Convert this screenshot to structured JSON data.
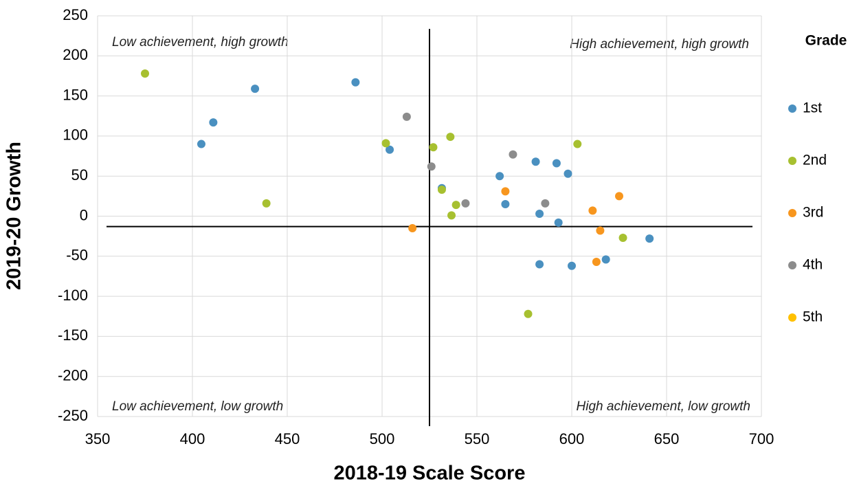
{
  "chart_data": {
    "type": "scatter",
    "xlabel": "2018-19 Scale Score",
    "ylabel": "2019-20 Growth",
    "legend_title": "Grade",
    "legend_position": "right",
    "grid": true,
    "xlim": [
      350,
      700
    ],
    "xticks": [
      350,
      400,
      450,
      500,
      550,
      600,
      650,
      700
    ],
    "ylim": [
      -250,
      250
    ],
    "yticks": [
      -250,
      -200,
      -150,
      -100,
      -50,
      0,
      50,
      100,
      150,
      200,
      250
    ],
    "reference_lines": {
      "x": 525,
      "y": -13
    },
    "annotations": [
      "Low achievement, high growth",
      "High achievement, high growth",
      "Low achievement, low growth",
      "High achievement, low growth"
    ],
    "series": [
      {
        "name": "1st",
        "color": "#4a90c0",
        "x": [
          404.7,
          411,
          433,
          486,
          504,
          531.5,
          562,
          565,
          581,
          592,
          598,
          583,
          593,
          583,
          600,
          618,
          641
        ],
        "y": [
          90,
          117,
          159,
          167,
          83,
          35,
          50,
          15,
          68,
          66,
          53,
          3,
          -8,
          -60,
          -62,
          -54,
          -28
        ]
      },
      {
        "name": "2nd",
        "color": "#a7c030",
        "x": [
          375,
          439,
          502,
          527,
          536,
          531.5,
          539,
          536.6,
          603,
          627,
          577
        ],
        "y": [
          178,
          16,
          91,
          86,
          99,
          33,
          14,
          1,
          90,
          -27,
          -122
        ]
      },
      {
        "name": "3rd",
        "color": "#f7961e",
        "x": [
          516,
          565,
          611,
          625,
          615,
          613
        ],
        "y": [
          -15,
          31,
          7,
          25,
          -18,
          -57
        ]
      },
      {
        "name": "4th",
        "color": "#8c8c8c",
        "x": [
          513,
          526,
          544,
          569,
          586
        ],
        "y": [
          124,
          62,
          16,
          77,
          16
        ]
      },
      {
        "name": "5th",
        "color": "#ffc000",
        "x": [],
        "y": []
      }
    ]
  }
}
